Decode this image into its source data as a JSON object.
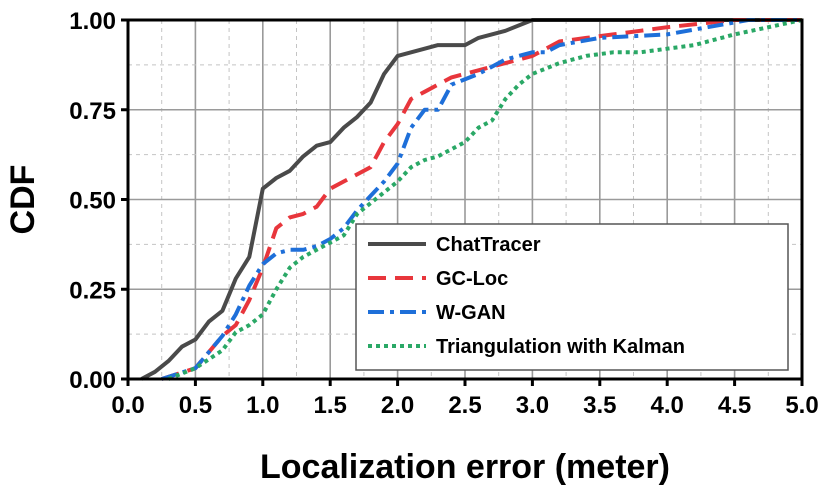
{
  "chart_data": {
    "type": "line",
    "title": "",
    "xlabel": "Localization error (meter)",
    "ylabel": "CDF",
    "xlim": [
      0,
      5
    ],
    "ylim": [
      0,
      1
    ],
    "xticks": [
      "0.0",
      "0.5",
      "1.0",
      "1.5",
      "2.0",
      "2.5",
      "3.0",
      "3.5",
      "4.0",
      "4.5",
      "5.0"
    ],
    "yticks": [
      "0.00",
      "0.25",
      "0.50",
      "0.75",
      "1.00"
    ],
    "grid": true,
    "legend_position": "bottom-right",
    "series": [
      {
        "name": "ChatTracer",
        "color": "#4a4a4a",
        "style": "solid",
        "points": [
          [
            0.1,
            0.0
          ],
          [
            0.2,
            0.02
          ],
          [
            0.3,
            0.05
          ],
          [
            0.4,
            0.09
          ],
          [
            0.5,
            0.11
          ],
          [
            0.6,
            0.16
          ],
          [
            0.7,
            0.19
          ],
          [
            0.8,
            0.28
          ],
          [
            0.9,
            0.34
          ],
          [
            1.0,
            0.53
          ],
          [
            1.1,
            0.56
          ],
          [
            1.2,
            0.58
          ],
          [
            1.3,
            0.62
          ],
          [
            1.4,
            0.65
          ],
          [
            1.5,
            0.66
          ],
          [
            1.6,
            0.7
          ],
          [
            1.7,
            0.73
          ],
          [
            1.8,
            0.77
          ],
          [
            1.9,
            0.85
          ],
          [
            2.0,
            0.9
          ],
          [
            2.1,
            0.91
          ],
          [
            2.2,
            0.92
          ],
          [
            2.3,
            0.93
          ],
          [
            2.5,
            0.93
          ],
          [
            2.6,
            0.95
          ],
          [
            2.8,
            0.97
          ],
          [
            3.0,
            1.0
          ],
          [
            5.0,
            1.0
          ]
        ]
      },
      {
        "name": "GC-Loc",
        "color": "#e8363c",
        "style": "dashed",
        "points": [
          [
            0.25,
            0.0
          ],
          [
            0.5,
            0.03
          ],
          [
            0.7,
            0.12
          ],
          [
            0.8,
            0.15
          ],
          [
            0.9,
            0.22
          ],
          [
            1.0,
            0.31
          ],
          [
            1.1,
            0.42
          ],
          [
            1.2,
            0.45
          ],
          [
            1.3,
            0.46
          ],
          [
            1.4,
            0.48
          ],
          [
            1.5,
            0.53
          ],
          [
            1.6,
            0.55
          ],
          [
            1.8,
            0.59
          ],
          [
            1.9,
            0.66
          ],
          [
            2.0,
            0.71
          ],
          [
            2.1,
            0.78
          ],
          [
            2.2,
            0.8
          ],
          [
            2.4,
            0.84
          ],
          [
            2.6,
            0.86
          ],
          [
            2.8,
            0.88
          ],
          [
            3.0,
            0.9
          ],
          [
            3.2,
            0.94
          ],
          [
            3.4,
            0.95
          ],
          [
            3.6,
            0.96
          ],
          [
            3.8,
            0.97
          ],
          [
            4.0,
            0.98
          ],
          [
            4.5,
            1.0
          ],
          [
            5.0,
            1.0
          ]
        ]
      },
      {
        "name": "W-GAN",
        "color": "#1e6fd9",
        "style": "dashdot",
        "points": [
          [
            0.25,
            0.0
          ],
          [
            0.5,
            0.03
          ],
          [
            0.7,
            0.12
          ],
          [
            0.8,
            0.18
          ],
          [
            0.9,
            0.26
          ],
          [
            1.0,
            0.32
          ],
          [
            1.1,
            0.35
          ],
          [
            1.2,
            0.36
          ],
          [
            1.3,
            0.36
          ],
          [
            1.4,
            0.37
          ],
          [
            1.5,
            0.39
          ],
          [
            1.6,
            0.42
          ],
          [
            1.7,
            0.47
          ],
          [
            1.8,
            0.51
          ],
          [
            1.9,
            0.55
          ],
          [
            2.0,
            0.6
          ],
          [
            2.1,
            0.7
          ],
          [
            2.2,
            0.75
          ],
          [
            2.3,
            0.75
          ],
          [
            2.4,
            0.82
          ],
          [
            2.6,
            0.85
          ],
          [
            2.8,
            0.89
          ],
          [
            3.0,
            0.91
          ],
          [
            3.1,
            0.91
          ],
          [
            3.2,
            0.93
          ],
          [
            3.5,
            0.95
          ],
          [
            4.0,
            0.96
          ],
          [
            4.3,
            0.98
          ],
          [
            4.6,
            1.0
          ],
          [
            5.0,
            1.0
          ]
        ]
      },
      {
        "name": "Triangulation with Kalman",
        "color": "#2aa866",
        "style": "dotted",
        "points": [
          [
            0.3,
            0.0
          ],
          [
            0.5,
            0.03
          ],
          [
            0.7,
            0.08
          ],
          [
            0.8,
            0.13
          ],
          [
            0.9,
            0.15
          ],
          [
            1.0,
            0.18
          ],
          [
            1.1,
            0.25
          ],
          [
            1.2,
            0.31
          ],
          [
            1.3,
            0.34
          ],
          [
            1.5,
            0.38
          ],
          [
            1.6,
            0.4
          ],
          [
            1.7,
            0.46
          ],
          [
            1.8,
            0.49
          ],
          [
            1.9,
            0.52
          ],
          [
            2.0,
            0.55
          ],
          [
            2.1,
            0.59
          ],
          [
            2.2,
            0.61
          ],
          [
            2.3,
            0.62
          ],
          [
            2.4,
            0.64
          ],
          [
            2.5,
            0.66
          ],
          [
            2.6,
            0.7
          ],
          [
            2.7,
            0.72
          ],
          [
            2.8,
            0.78
          ],
          [
            2.9,
            0.82
          ],
          [
            3.0,
            0.85
          ],
          [
            3.2,
            0.88
          ],
          [
            3.4,
            0.9
          ],
          [
            3.6,
            0.91
          ],
          [
            3.8,
            0.91
          ],
          [
            4.0,
            0.92
          ],
          [
            4.2,
            0.93
          ],
          [
            4.5,
            0.96
          ],
          [
            5.0,
            1.0
          ]
        ]
      }
    ]
  }
}
